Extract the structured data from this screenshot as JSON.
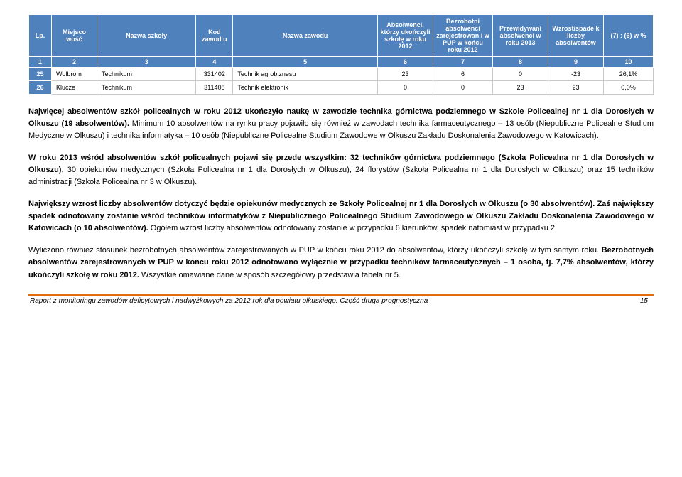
{
  "table": {
    "headers": [
      "Lp.",
      "Miejsco wość",
      "Nazwa szkoły",
      "Kod zawod u",
      "Nazwa zawodu",
      "Absolwenci, którzy ukończyli szkołę w roku 2012",
      "Bezrobotni absolwenci zarejestrowan i w PUP w końcu roku 2012",
      "Przewidywani absolwenci w roku 2013",
      "Wzrost/spade k liczby absolwentów",
      "(7) : (6) w %"
    ],
    "numrow": [
      "1",
      "2",
      "3",
      "4",
      "5",
      "6",
      "7",
      "8",
      "9",
      "10"
    ],
    "rows": [
      {
        "lp": "25",
        "miejsc": "Wolbrom",
        "szkola": "Technikum",
        "kod": "331402",
        "zawod": "Technik agrobiznesu",
        "c6": "23",
        "c7": "6",
        "c8": "0",
        "c9": "-23",
        "c10": "26,1%"
      },
      {
        "lp": "26",
        "miejsc": "Klucze",
        "szkola": "Technikum",
        "kod": "311408",
        "zawod": "Technik elektronik",
        "c6": "0",
        "c7": "0",
        "c8": "23",
        "c9": "23",
        "c10": "0,0%"
      }
    ]
  },
  "para1_a": "Najwięcej absolwentów szkół policealnych w roku 2012 ukończyło naukę w zawodzie technika górnictwa podziemnego w Szkole Policealnej nr 1 dla Dorosłych w Olkuszu (19 absolwentów).",
  "para1_b": " Minimum 10 absolwentów na rynku pracy pojawiło się również w zawodach technika farmaceutycznego – 13 osób (Niepubliczne Policealne Studium Medyczne w Olkuszu) i technika informatyka – 10 osób (Niepubliczne Policealne Studium Zawodowe w Olkuszu Zakładu Doskonalenia Zawodowego w Katowicach).",
  "para2_a": "W roku 2013 wśród absolwentów szkół policealnych pojawi się przede wszystkim: 32 techników górnictwa podziemnego (Szkoła Policealna nr 1 dla Dorosłych w Olkuszu)",
  "para2_b": ", 30 opiekunów medycznych (Szkoła Policealna nr 1 dla Dorosłych w Olkuszu), 24 florystów (Szkoła Policealna nr 1 dla Dorosłych w Olkuszu) oraz 15 techników administracji (Szkoła Policealna nr 3 w Olkuszu).",
  "para3_a": "Największy wzrost liczby absolwentów dotyczyć będzie opiekunów medycznych ze Szkoły Policealnej nr 1 dla Dorosłych w Olkuszu (o 30 absolwentów). Zaś największy spadek odnotowany zostanie wśród techników informatyków z Niepublicznego Policealnego Studium Zawodowego w Olkuszu Zakładu Doskonalenia Zawodowego w Katowicach (o 10 absolwentów).",
  "para3_b": " Ogółem wzrost liczby absolwentów odnotowany zostanie w przypadku 6 kierunków, spadek natomiast w przypadku 2.",
  "para4_a": "Wyliczono również stosunek bezrobotnych absolwentów zarejestrowanych w PUP w końcu roku 2012 do absolwentów, którzy ukończyli szkołę w tym samym roku. ",
  "para4_b": "Bezrobotnych absolwentów zarejestrowanych w PUP w końcu roku 2012 odnotowano wyłącznie w przypadku techników farmaceutycznych – 1 osoba, tj. 7,7% absolwentów, którzy ukończyli szkołę w roku 2012.",
  "para4_c": " Wszystkie omawiane dane w sposób szczegółowy przedstawia tabela nr 5.",
  "footer_text": "Raport z monitoringu zawodów deficytowych i nadwyżkowych za 2012 rok dla powiatu olkuskiego. Część druga prognostyczna",
  "footer_page": "15",
  "colwidths": [
    "32px",
    "64px",
    "auto",
    "52px",
    "auto",
    "78px",
    "84px",
    "78px",
    "78px",
    "70px"
  ]
}
